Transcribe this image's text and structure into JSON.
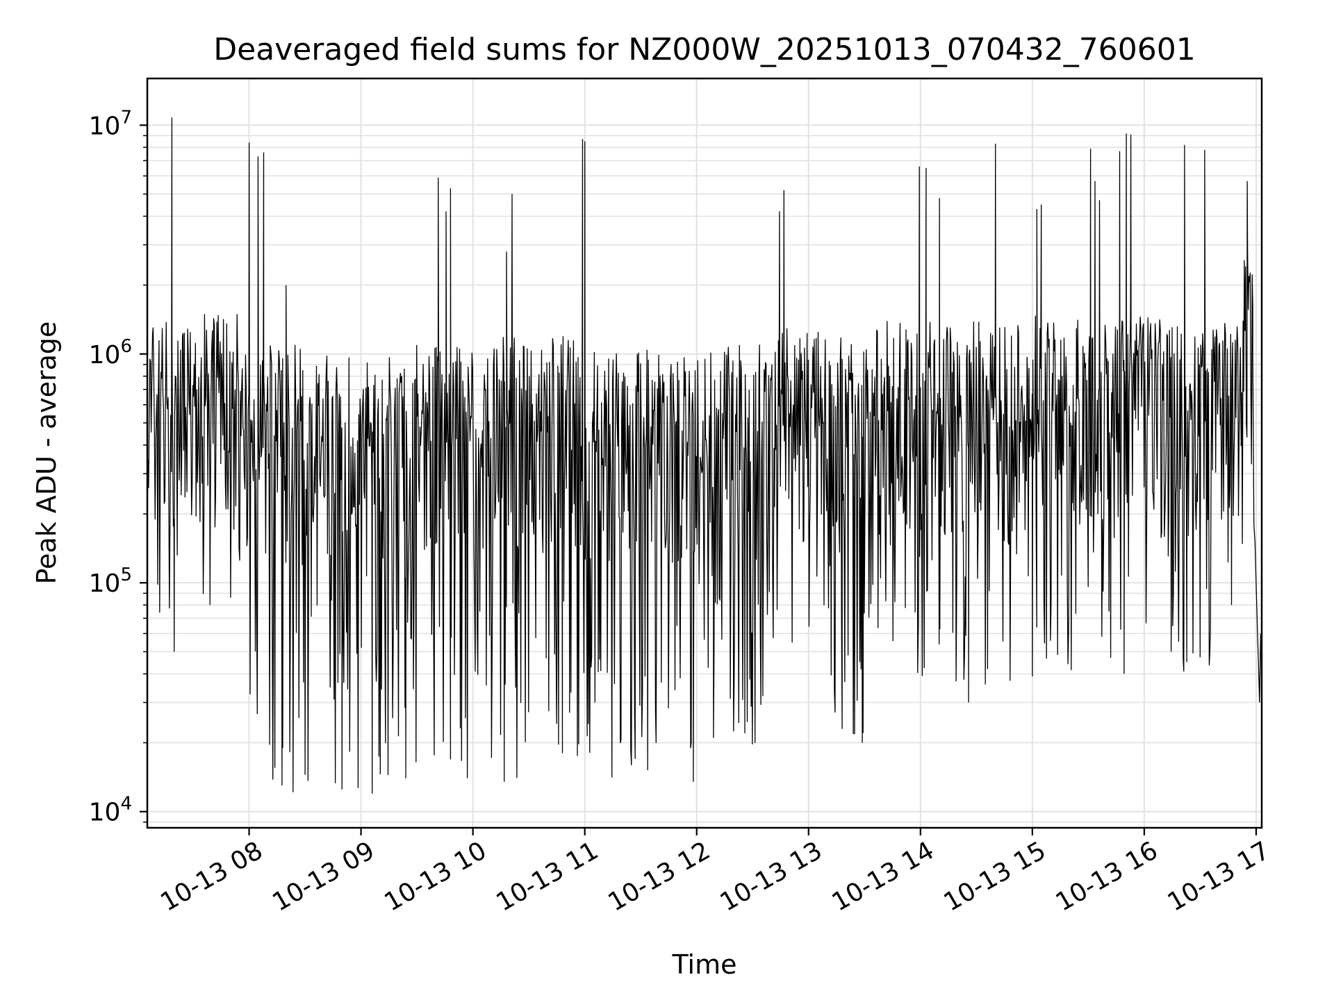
{
  "chart_data": {
    "type": "line",
    "title": "Deaveraged field sums for NZ000W_20251013_070432_760601",
    "xlabel": "Time",
    "ylabel": "Peak ADU - average",
    "yscale": "log",
    "ylim": [
      8500,
      16000000
    ],
    "xlim_hours": [
      7.09,
      17.05
    ],
    "grid": true,
    "x_tick_hours": [
      8,
      9,
      10,
      11,
      12,
      13,
      14,
      15,
      16,
      17
    ],
    "x_tick_labels": [
      "10-13 08",
      "10-13 09",
      "10-13 10",
      "10-13 11",
      "10-13 12",
      "10-13 13",
      "10-13 14",
      "10-13 15",
      "10-13 16",
      "10-13 17"
    ],
    "y_ticks": [
      {
        "value": 10000,
        "base": "10",
        "exp": "4"
      },
      {
        "value": 100000,
        "base": "10",
        "exp": "5"
      },
      {
        "value": 1000000,
        "base": "10",
        "exp": "6"
      },
      {
        "value": 10000000,
        "base": "10",
        "exp": "7"
      }
    ],
    "series": [
      {
        "name": "Peak ADU - average",
        "color": "#000000",
        "segments": [
          {
            "t0": 7.09,
            "t1": 7.9,
            "hi": 1500000,
            "lo_min": 60000,
            "lo_max": 600000
          },
          {
            "t0": 7.9,
            "t1": 9.7,
            "hi": 1100000,
            "lo_min": 12000,
            "lo_max": 150000
          },
          {
            "t0": 9.7,
            "t1": 10.2,
            "hi": 1100000,
            "lo_min": 14000,
            "lo_max": 80000
          },
          {
            "t0": 10.2,
            "t1": 11.0,
            "hi": 1200000,
            "lo_min": 14000,
            "lo_max": 90000
          },
          {
            "t0": 11.0,
            "t1": 11.8,
            "hi": 1050000,
            "lo_min": 13500,
            "lo_max": 60000
          },
          {
            "t0": 11.8,
            "t1": 12.6,
            "hi": 1100000,
            "lo_min": 18000,
            "lo_max": 120000
          },
          {
            "t0": 12.6,
            "t1": 13.2,
            "hi": 1300000,
            "lo_min": 50000,
            "lo_max": 300000
          },
          {
            "t0": 13.2,
            "t1": 13.5,
            "hi": 1200000,
            "lo_min": 20000,
            "lo_max": 80000
          },
          {
            "t0": 13.5,
            "t1": 15.0,
            "hi": 1400000,
            "lo_min": 35000,
            "lo_max": 300000
          },
          {
            "t0": 15.0,
            "t1": 16.6,
            "hi": 1500000,
            "lo_min": 40000,
            "lo_max": 350000
          },
          {
            "t0": 16.6,
            "t1": 16.88,
            "hi": 1500000,
            "lo_min": 120000,
            "lo_max": 500000
          },
          {
            "t0": 16.88,
            "t1": 16.97,
            "hi": 3000000,
            "lo_min": 300000,
            "lo_max": 900000
          }
        ],
        "tail": [
          {
            "t": 16.97,
            "v": 1000000
          },
          {
            "t": 16.98,
            "v": 180000
          },
          {
            "t": 16.99,
            "v": 150000
          },
          {
            "t": 17.0,
            "v": 100000
          },
          {
            "t": 17.01,
            "v": 65000
          },
          {
            "t": 17.02,
            "v": 45000
          },
          {
            "t": 17.03,
            "v": 30000
          },
          {
            "t": 17.04,
            "v": 60000
          },
          {
            "t": 17.05,
            "v": 40000
          }
        ],
        "spikes": [
          {
            "t": 7.31,
            "v": 10800000
          },
          {
            "t": 8.0,
            "v": 8400000
          },
          {
            "t": 8.08,
            "v": 7300000
          },
          {
            "t": 8.13,
            "v": 7600000
          },
          {
            "t": 8.33,
            "v": 2000000
          },
          {
            "t": 9.69,
            "v": 5900000
          },
          {
            "t": 9.76,
            "v": 4200000
          },
          {
            "t": 9.8,
            "v": 5300000
          },
          {
            "t": 10.3,
            "v": 2800000
          },
          {
            "t": 10.35,
            "v": 5000000
          },
          {
            "t": 10.98,
            "v": 8700000
          },
          {
            "t": 11.0,
            "v": 8500000
          },
          {
            "t": 12.74,
            "v": 4200000
          },
          {
            "t": 12.78,
            "v": 5200000
          },
          {
            "t": 13.99,
            "v": 6600000
          },
          {
            "t": 14.05,
            "v": 6500000
          },
          {
            "t": 14.17,
            "v": 4800000
          },
          {
            "t": 14.67,
            "v": 8300000
          },
          {
            "t": 15.04,
            "v": 4300000
          },
          {
            "t": 15.08,
            "v": 4500000
          },
          {
            "t": 15.52,
            "v": 7900000
          },
          {
            "t": 15.56,
            "v": 5700000
          },
          {
            "t": 15.6,
            "v": 4700000
          },
          {
            "t": 15.78,
            "v": 7700000
          },
          {
            "t": 15.84,
            "v": 9200000
          },
          {
            "t": 15.88,
            "v": 9100000
          },
          {
            "t": 16.36,
            "v": 8200000
          },
          {
            "t": 16.54,
            "v": 7800000
          },
          {
            "t": 16.92,
            "v": 5700000
          }
        ],
        "dips": [
          {
            "t": 7.33,
            "v": 50000
          },
          {
            "t": 7.65,
            "v": 80000
          },
          {
            "t": 8.3,
            "v": 19000
          },
          {
            "t": 8.5,
            "v": 14500
          },
          {
            "t": 8.83,
            "v": 12500
          },
          {
            "t": 9.1,
            "v": 12000
          },
          {
            "t": 9.4,
            "v": 14000
          },
          {
            "t": 9.95,
            "v": 14000
          },
          {
            "t": 10.28,
            "v": 13500
          },
          {
            "t": 10.8,
            "v": 18000
          },
          {
            "t": 11.45,
            "v": 17000
          },
          {
            "t": 11.97,
            "v": 13500
          },
          {
            "t": 12.15,
            "v": 21000
          },
          {
            "t": 12.43,
            "v": 22000
          },
          {
            "t": 13.3,
            "v": 23000
          },
          {
            "t": 13.48,
            "v": 20000
          },
          {
            "t": 14.43,
            "v": 30000
          },
          {
            "t": 14.6,
            "v": 42000
          },
          {
            "t": 15.0,
            "v": 39000
          },
          {
            "t": 15.7,
            "v": 47000
          },
          {
            "t": 15.82,
            "v": 40000
          },
          {
            "t": 16.24,
            "v": 50000
          },
          {
            "t": 16.38,
            "v": 45000
          },
          {
            "t": 16.78,
            "v": 80000
          }
        ]
      }
    ]
  }
}
